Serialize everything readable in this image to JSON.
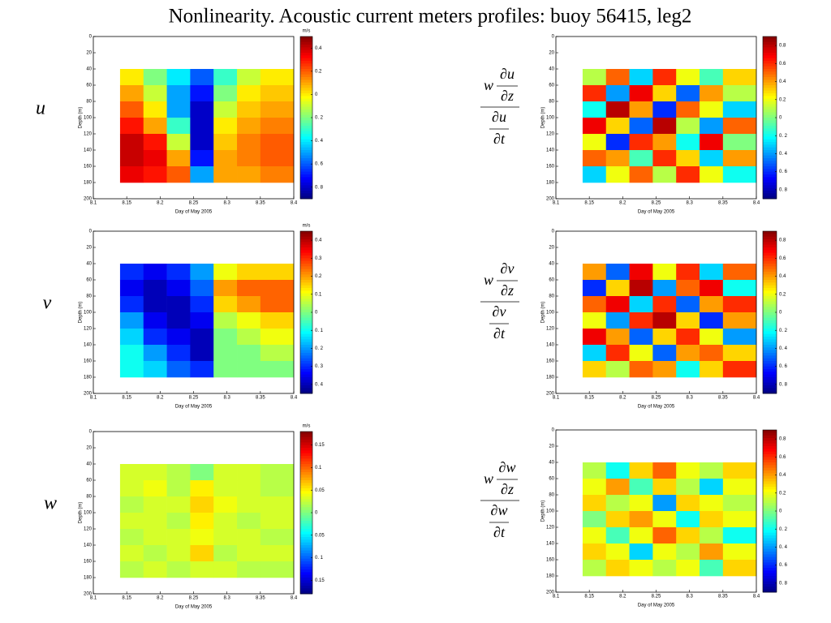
{
  "title": "Nonlinearity. Acoustic current meters profiles: buoy 56415, leg2",
  "chart_data": [
    {
      "type": "heatmap",
      "label": "u",
      "unit": "m/s",
      "xlabel": "Day of May 2005",
      "ylabel": "Depth (m)",
      "xlim": [
        8.1,
        8.4
      ],
      "xticks": [
        8.1,
        8.15,
        8.2,
        8.25,
        8.3,
        8.35,
        8.4
      ],
      "ylim": [
        0,
        200
      ],
      "y_inverted": true,
      "yticks": [
        0,
        20,
        40,
        60,
        80,
        100,
        120,
        140,
        160,
        180,
        200
      ],
      "clim": [
        -0.9,
        0.5
      ],
      "cticks": [
        0.4,
        0.2,
        0,
        {
          "value": -0.2,
          "label": "0. 2"
        },
        {
          "value": -0.4,
          "label": "0. 4"
        },
        {
          "value": -0.6,
          "label": "0. 6"
        },
        {
          "value": -0.8,
          "label": "0. 8"
        }
      ],
      "xbins": [
        8.14,
        8.175,
        8.21,
        8.245,
        8.28,
        8.315,
        8.35,
        8.4
      ],
      "ybins": [
        40,
        60,
        80,
        100,
        120,
        140,
        160,
        180
      ],
      "z": [
        [
          0,
          -0.2,
          -0.4,
          -0.6,
          -0.3,
          -0.1,
          0
        ],
        [
          0.1,
          -0.1,
          -0.5,
          -0.7,
          -0.2,
          0,
          0.05
        ],
        [
          0.2,
          0,
          -0.5,
          -0.8,
          -0.1,
          0.05,
          0.1
        ],
        [
          0.3,
          0.1,
          -0.3,
          -0.8,
          0,
          0.1,
          0.15
        ],
        [
          0.4,
          0.3,
          -0.1,
          -0.8,
          0.05,
          0.15,
          0.2
        ],
        [
          0.4,
          0.35,
          0.1,
          -0.7,
          0.1,
          0.15,
          0.2
        ],
        [
          0.35,
          0.3,
          0.2,
          -0.5,
          0.1,
          0.1,
          0.15
        ]
      ]
    },
    {
      "type": "heatmap",
      "formula": {
        "w": "w",
        "num_top": "∂u",
        "num_bottom": "∂z",
        "den_top": "∂u",
        "den_bottom": "∂t"
      },
      "xlabel": "Day of May 2005",
      "ylabel": "Depth (m)",
      "xlim": [
        8.1,
        8.4
      ],
      "xticks": [
        8.1,
        8.15,
        8.2,
        8.25,
        8.3,
        8.35,
        8.4
      ],
      "ylim": [
        0,
        200
      ],
      "y_inverted": true,
      "yticks": [
        0,
        20,
        40,
        60,
        80,
        100,
        120,
        140,
        160,
        180,
        200
      ],
      "clim": [
        -0.9,
        0.9
      ],
      "cticks": [
        0.8,
        0.6,
        0.4,
        0.2,
        0,
        {
          "value": -0.2,
          "label": "0. 2"
        },
        {
          "value": -0.4,
          "label": "0. 4"
        },
        {
          "value": -0.6,
          "label": "0. 6"
        },
        {
          "value": -0.8,
          "label": "0. 8"
        }
      ],
      "xbins": [
        8.14,
        8.175,
        8.21,
        8.245,
        8.28,
        8.315,
        8.35,
        8.4
      ],
      "ybins": [
        40,
        60,
        80,
        100,
        120,
        140,
        160,
        180
      ],
      "z": [
        [
          0.1,
          0.5,
          -0.3,
          0.6,
          0.2,
          -0.1,
          0.3
        ],
        [
          0.6,
          -0.4,
          0.7,
          0.3,
          -0.5,
          0.4,
          0.1
        ],
        [
          -0.2,
          0.8,
          0.4,
          -0.6,
          0.5,
          0.2,
          -0.3
        ],
        [
          0.7,
          0.3,
          -0.5,
          0.8,
          0.1,
          -0.4,
          0.5
        ],
        [
          0.2,
          -0.6,
          0.6,
          0.4,
          -0.2,
          0.7,
          0
        ],
        [
          0.5,
          0.4,
          -0.1,
          0.6,
          0.3,
          -0.3,
          0.4
        ],
        [
          -0.3,
          0.2,
          0.5,
          0.1,
          0.6,
          0.2,
          -0.2
        ]
      ]
    },
    {
      "type": "heatmap",
      "label": "v",
      "unit": "m/s",
      "xlabel": "Day of May 2005",
      "ylabel": "Depth (m)",
      "xlim": [
        8.1,
        8.4
      ],
      "xticks": [
        8.1,
        8.15,
        8.2,
        8.25,
        8.3,
        8.35,
        8.4
      ],
      "ylim": [
        0,
        200
      ],
      "y_inverted": true,
      "yticks": [
        0,
        20,
        40,
        60,
        80,
        100,
        120,
        140,
        160,
        180,
        200
      ],
      "clim": [
        -0.45,
        0.45
      ],
      "cticks": [
        0.4,
        0.3,
        0.2,
        0.1,
        0,
        {
          "value": -0.1,
          "label": "0. 1"
        },
        {
          "value": -0.2,
          "label": "0. 2"
        },
        {
          "value": -0.3,
          "label": "0. 3"
        },
        {
          "value": -0.4,
          "label": "0. 4"
        }
      ],
      "xbins": [
        8.14,
        8.175,
        8.21,
        8.245,
        8.28,
        8.315,
        8.35,
        8.4
      ],
      "ybins": [
        40,
        60,
        80,
        100,
        120,
        140,
        160,
        180
      ],
      "z": [
        [
          -0.3,
          -0.35,
          -0.3,
          -0.2,
          0.1,
          0.15,
          0.15
        ],
        [
          -0.35,
          -0.4,
          -0.35,
          -0.25,
          0.2,
          0.25,
          0.25
        ],
        [
          -0.3,
          -0.4,
          -0.4,
          -0.3,
          0.15,
          0.2,
          0.25
        ],
        [
          -0.2,
          -0.35,
          -0.4,
          -0.35,
          0.05,
          0.1,
          0.15
        ],
        [
          -0.15,
          -0.3,
          -0.35,
          -0.4,
          0,
          0.05,
          0.1
        ],
        [
          -0.1,
          -0.2,
          -0.3,
          -0.4,
          0,
          0,
          0.05
        ],
        [
          -0.1,
          -0.15,
          -0.25,
          -0.3,
          0,
          0,
          0
        ]
      ]
    },
    {
      "type": "heatmap",
      "formula": {
        "w": "w",
        "num_top": "∂v",
        "num_bottom": "∂z",
        "den_top": "∂v",
        "den_bottom": "∂t"
      },
      "xlabel": "Day of May 2005",
      "ylabel": "Depth (m)",
      "xlim": [
        8.1,
        8.4
      ],
      "xticks": [
        8.1,
        8.15,
        8.2,
        8.25,
        8.3,
        8.35,
        8.4
      ],
      "ylim": [
        0,
        200
      ],
      "y_inverted": true,
      "yticks": [
        0,
        20,
        40,
        60,
        80,
        100,
        120,
        140,
        160,
        180,
        200
      ],
      "clim": [
        -0.9,
        0.9
      ],
      "cticks": [
        0.8,
        0.6,
        0.4,
        0.2,
        0,
        {
          "value": -0.2,
          "label": "0. 2"
        },
        {
          "value": -0.4,
          "label": "0. 4"
        },
        {
          "value": -0.6,
          "label": "0. 6"
        },
        {
          "value": -0.8,
          "label": "0. 8"
        }
      ],
      "xbins": [
        8.14,
        8.175,
        8.21,
        8.245,
        8.28,
        8.315,
        8.35,
        8.4
      ],
      "ybins": [
        40,
        60,
        80,
        100,
        120,
        140,
        160,
        180
      ],
      "z": [
        [
          0.4,
          -0.5,
          0.7,
          0.2,
          0.6,
          -0.3,
          0.5
        ],
        [
          -0.6,
          0.3,
          0.8,
          -0.4,
          0.5,
          0.7,
          -0.2
        ],
        [
          0.5,
          0.7,
          -0.3,
          0.6,
          -0.5,
          0.4,
          0.6
        ],
        [
          0.2,
          -0.4,
          0.6,
          0.8,
          0.3,
          -0.6,
          0.4
        ],
        [
          0.7,
          0.4,
          -0.5,
          0.3,
          0.6,
          0.2,
          -0.4
        ],
        [
          -0.3,
          0.6,
          0.2,
          -0.5,
          0.4,
          0.5,
          0.3
        ],
        [
          0.3,
          0.1,
          0.5,
          0.4,
          -0.2,
          0.3,
          0.6
        ]
      ]
    },
    {
      "type": "heatmap",
      "label": "w",
      "unit": "m/s",
      "xlabel": "Day of May 2005",
      "ylabel": "Depth (m)",
      "xlim": [
        8.1,
        8.4
      ],
      "xticks": [
        8.1,
        8.15,
        8.2,
        8.25,
        8.3,
        8.35,
        8.4
      ],
      "ylim": [
        0,
        200
      ],
      "y_inverted": true,
      "yticks": [
        0,
        20,
        40,
        60,
        80,
        100,
        120,
        140,
        160,
        180,
        200
      ],
      "clim": [
        -0.18,
        0.18
      ],
      "cticks": [
        0.15,
        0.1,
        0.05,
        0,
        {
          "value": -0.05,
          "label": "0.05"
        },
        {
          "value": -0.1,
          "label": "0. 1"
        },
        {
          "value": -0.15,
          "label": "0.15"
        }
      ],
      "xbins": [
        8.14,
        8.175,
        8.21,
        8.245,
        8.28,
        8.315,
        8.35,
        8.4
      ],
      "ybins": [
        40,
        60,
        80,
        100,
        120,
        140,
        160,
        180
      ],
      "z": [
        [
          0.03,
          0.03,
          0.02,
          0,
          0.03,
          0.03,
          0.02
        ],
        [
          0.03,
          0.04,
          0.02,
          0.05,
          0.03,
          0.03,
          0.02
        ],
        [
          0.02,
          0.03,
          0.03,
          0.06,
          0.04,
          0.03,
          0.03
        ],
        [
          0.03,
          0.03,
          0.02,
          0.05,
          0.03,
          0.02,
          0.03
        ],
        [
          0.02,
          0.03,
          0.03,
          0.04,
          0.03,
          0.03,
          0.02
        ],
        [
          0.03,
          0.02,
          0.03,
          0.06,
          0.02,
          0.03,
          0.03
        ],
        [
          0.02,
          0.03,
          0.02,
          0.03,
          0.03,
          0.02,
          0.02
        ]
      ]
    },
    {
      "type": "heatmap",
      "formula": {
        "w": "w",
        "num_top": "∂w",
        "num_bottom": "∂z",
        "den_top": "∂w",
        "den_bottom": "∂t"
      },
      "xlabel": "Day of May 2005",
      "ylabel": "Depth (m)",
      "xlim": [
        8.1,
        8.4
      ],
      "xticks": [
        8.1,
        8.15,
        8.2,
        8.25,
        8.3,
        8.35,
        8.4
      ],
      "ylim": [
        0,
        200
      ],
      "y_inverted": true,
      "yticks": [
        0,
        20,
        40,
        60,
        80,
        100,
        120,
        140,
        160,
        180,
        200
      ],
      "clim": [
        -0.9,
        0.9
      ],
      "cticks": [
        0.8,
        0.6,
        0.4,
        0.2,
        0,
        {
          "value": -0.2,
          "label": "0. 2"
        },
        {
          "value": -0.4,
          "label": "0. 4"
        },
        {
          "value": -0.6,
          "label": "0. 6"
        },
        {
          "value": -0.8,
          "label": "0. 8"
        }
      ],
      "xbins": [
        8.14,
        8.175,
        8.21,
        8.245,
        8.28,
        8.315,
        8.35,
        8.4
      ],
      "ybins": [
        40,
        60,
        80,
        100,
        120,
        140,
        160,
        180
      ],
      "z": [
        [
          0.1,
          -0.2,
          0.3,
          0.5,
          0.2,
          0.1,
          0.3
        ],
        [
          0.2,
          0.4,
          -0.1,
          0.3,
          0.1,
          -0.3,
          0.2
        ],
        [
          0.3,
          0.1,
          0.2,
          -0.4,
          0.3,
          0.2,
          0.1
        ],
        [
          0,
          0.3,
          0.4,
          0.2,
          -0.2,
          0.3,
          0.2
        ],
        [
          0.2,
          -0.1,
          0.2,
          0.5,
          0.3,
          0.1,
          -0.2
        ],
        [
          0.3,
          0.2,
          -0.3,
          0.2,
          0.1,
          0.4,
          0.2
        ],
        [
          0.1,
          0.3,
          0.2,
          0.1,
          0.2,
          -0.1,
          0.3
        ]
      ]
    }
  ]
}
